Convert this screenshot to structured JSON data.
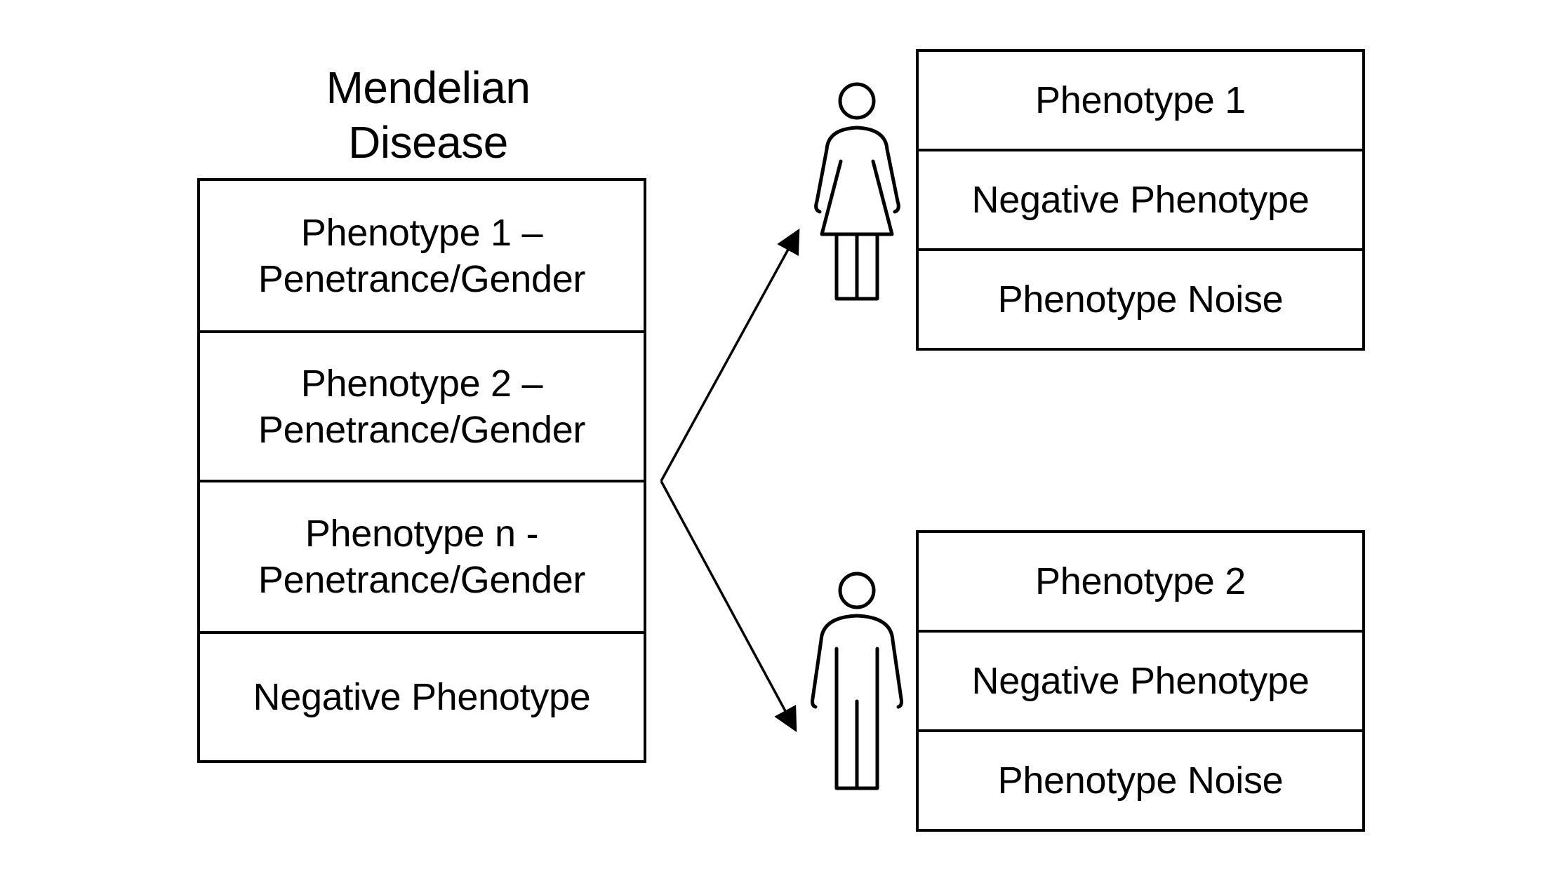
{
  "disease": {
    "title_line1": "Mendelian",
    "title_line2": "Disease",
    "rows": [
      {
        "line1": "Phenotype 1 –",
        "line2": "Penetrance/Gender"
      },
      {
        "line1": "Phenotype 2 –",
        "line2": "Penetrance/Gender"
      },
      {
        "line1": "Phenotype n -",
        "line2": "Penetrance/Gender"
      },
      {
        "line1": "Negative Phenotype",
        "line2": ""
      }
    ]
  },
  "patients": [
    {
      "figure": "female-figure-icon",
      "rows": [
        "Phenotype 1",
        "Negative Phenotype",
        "Phenotype Noise"
      ]
    },
    {
      "figure": "male-figure-icon",
      "rows": [
        "Phenotype 2",
        "Negative Phenotype",
        "Phenotype Noise"
      ]
    }
  ]
}
